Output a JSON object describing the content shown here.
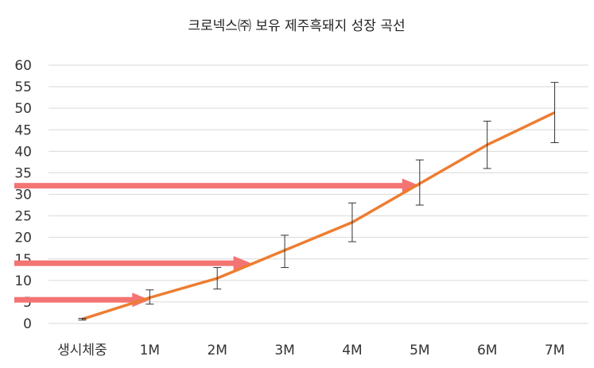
{
  "chart_data": {
    "type": "line",
    "title": "크로넥스㈜ 보유 제주흑돼지 성장 곡선",
    "categories": [
      "생시체중",
      "1M",
      "2M",
      "3M",
      "4M",
      "5M",
      "6M",
      "7M"
    ],
    "series": [
      {
        "values": [
          1,
          6,
          10.5,
          17,
          23.5,
          32.5,
          41.5,
          49
        ],
        "error_low": [
          0.8,
          4.5,
          8,
          13,
          19,
          27.5,
          36,
          42
        ],
        "error_high": [
          1.2,
          7.8,
          13,
          20.5,
          28,
          38,
          47,
          56
        ],
        "color": "#ed7d31"
      }
    ],
    "ylim": [
      0,
      60
    ],
    "yticks": [
      0,
      5,
      10,
      15,
      20,
      25,
      30,
      35,
      40,
      45,
      50,
      55,
      60
    ],
    "grid": true,
    "legend": "none",
    "annotations": {
      "arrows": [
        {
          "y": 5.5,
          "to_x": "1M"
        },
        {
          "y": 14,
          "to_x": "2.5M"
        },
        {
          "y": 32,
          "to_x": "5M"
        }
      ],
      "arrow_color": "#f47373"
    }
  }
}
